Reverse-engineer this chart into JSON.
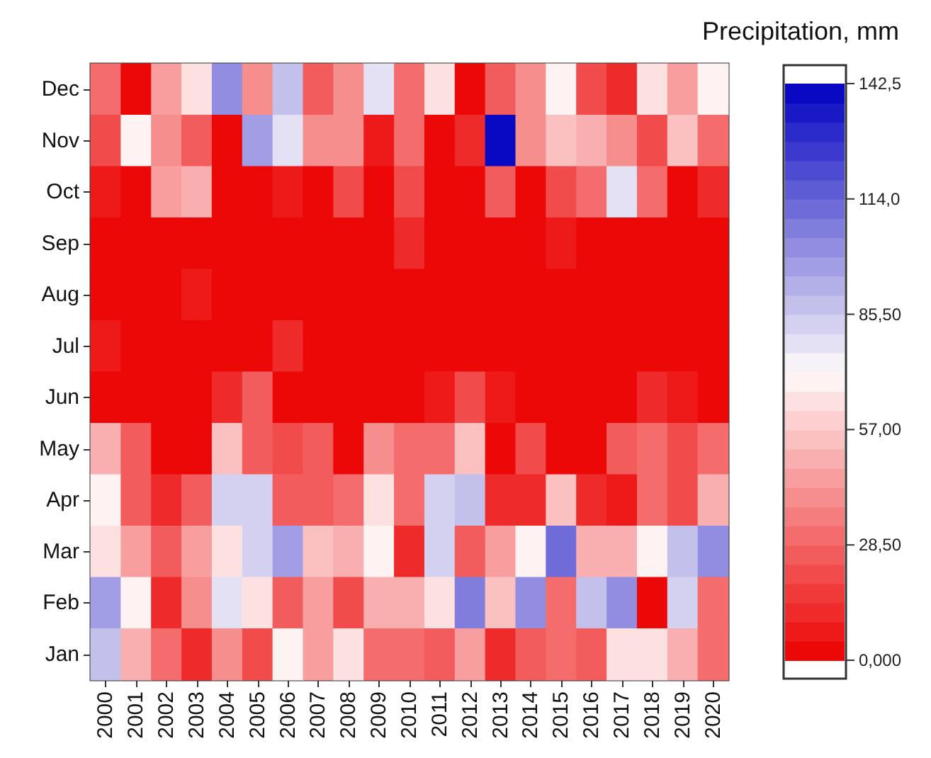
{
  "chart_data": {
    "type": "heatmap",
    "clabel": "Precipitation, mm",
    "categories": [
      "2000",
      "2001",
      "2002",
      "2003",
      "2004",
      "2005",
      "2006",
      "2007",
      "2008",
      "2009",
      "2010",
      "2011",
      "2012",
      "2013",
      "2014",
      "2015",
      "2016",
      "2017",
      "2018",
      "2019",
      "2020"
    ],
    "y_categories": [
      "Dec",
      "Nov",
      "Oct",
      "Sep",
      "Aug",
      "Jul",
      "Jun",
      "May",
      "Apr",
      "Mar",
      "Feb",
      "Jan"
    ],
    "cells": [
      [
        31,
        3,
        47,
        62,
        100,
        42,
        86,
        24,
        42,
        76,
        33,
        66,
        3,
        24,
        42,
        71,
        19,
        14,
        66,
        47,
        71
      ],
      [
        19,
        71,
        38,
        24,
        3,
        95,
        76,
        40,
        40,
        8,
        33,
        3,
        14,
        140,
        38,
        55,
        50,
        42,
        19,
        55,
        31
      ],
      [
        8,
        3,
        47,
        52,
        3,
        3,
        8,
        3,
        19,
        3,
        19,
        3,
        3,
        24,
        3,
        19,
        30,
        76,
        31,
        3,
        14
      ],
      [
        3,
        3,
        3,
        3,
        3,
        3,
        3,
        3,
        3,
        3,
        14,
        3,
        3,
        3,
        3,
        8,
        3,
        3,
        3,
        3,
        3
      ],
      [
        3,
        3,
        3,
        8,
        3,
        3,
        3,
        3,
        3,
        3,
        3,
        3,
        3,
        3,
        3,
        3,
        3,
        3,
        3,
        3,
        3
      ],
      [
        8,
        3,
        3,
        3,
        3,
        3,
        14,
        3,
        3,
        3,
        3,
        3,
        3,
        3,
        3,
        3,
        3,
        3,
        3,
        3,
        3
      ],
      [
        3,
        3,
        3,
        3,
        14,
        28,
        3,
        3,
        3,
        3,
        3,
        8,
        19,
        8,
        3,
        3,
        3,
        3,
        14,
        8,
        3
      ],
      [
        50,
        24,
        3,
        3,
        55,
        28,
        19,
        24,
        3,
        40,
        33,
        30,
        55,
        3,
        19,
        3,
        3,
        24,
        33,
        19,
        33
      ],
      [
        71,
        24,
        14,
        24,
        81,
        81,
        28,
        28,
        33,
        66,
        30,
        81,
        90,
        14,
        14,
        55,
        14,
        8,
        33,
        19,
        50
      ],
      [
        62,
        45,
        24,
        45,
        62,
        81,
        95,
        55,
        52,
        71,
        14,
        81,
        24,
        45,
        71,
        112,
        50,
        50,
        71,
        86,
        100
      ],
      [
        95,
        71,
        14,
        38,
        76,
        66,
        24,
        47,
        19,
        52,
        52,
        66,
        105,
        55,
        100,
        30,
        86,
        100,
        3,
        81,
        33
      ],
      [
        90,
        52,
        31,
        14,
        40,
        19,
        71,
        45,
        66,
        30,
        30,
        24,
        45,
        14,
        27,
        30,
        24,
        62,
        62,
        50,
        30
      ]
    ],
    "clim": [
      0,
      142.5
    ],
    "cticks": [
      {
        "value": 0,
        "label": "0,000"
      },
      {
        "value": 28.5,
        "label": "28,50"
      },
      {
        "value": 57,
        "label": "57,00"
      },
      {
        "value": 85.5,
        "label": "85,50"
      },
      {
        "value": 114,
        "label": "114,0"
      },
      {
        "value": 142.5,
        "label": "142,5"
      }
    ]
  }
}
